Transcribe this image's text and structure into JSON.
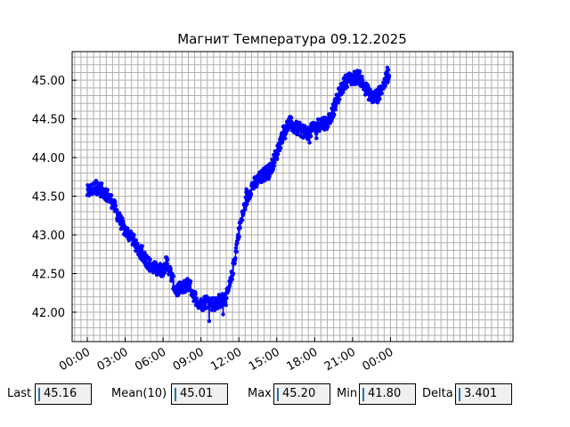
{
  "chart_data": {
    "type": "line",
    "title": "Магнит Температура 09.12.2025",
    "xlabel": "",
    "ylabel": "",
    "x_unit": "hours",
    "xlim": [
      -1.2,
      33.7
    ],
    "ylim": [
      41.62,
      45.37
    ],
    "x_ticks": [
      {
        "value": 0,
        "label": "00:00"
      },
      {
        "value": 3,
        "label": "03:00"
      },
      {
        "value": 6,
        "label": "06:00"
      },
      {
        "value": 9,
        "label": "09:00"
      },
      {
        "value": 12,
        "label": "12:00"
      },
      {
        "value": 15,
        "label": "15:00"
      },
      {
        "value": 18,
        "label": "18:00"
      },
      {
        "value": 21,
        "label": "21:00"
      },
      {
        "value": 24,
        "label": "00:00"
      }
    ],
    "y_ticks": [
      {
        "value": 42.0,
        "label": "42.00"
      },
      {
        "value": 42.5,
        "label": "42.50"
      },
      {
        "value": 43.0,
        "label": "43.00"
      },
      {
        "value": 43.5,
        "label": "43.50"
      },
      {
        "value": 44.0,
        "label": "44.00"
      },
      {
        "value": 44.5,
        "label": "44.50"
      },
      {
        "value": 45.0,
        "label": "45.00"
      }
    ],
    "grid": true,
    "minor_grid_step_y": 0.1,
    "color": "#0000ff",
    "series": [
      {
        "x_start": 0.0,
        "x_end": 23.9,
        "anchors": [
          [
            0.0,
            43.55
          ],
          [
            0.7,
            43.62
          ],
          [
            1.4,
            43.55
          ],
          [
            2.0,
            43.42
          ],
          [
            2.5,
            43.22
          ],
          [
            3.0,
            43.05
          ],
          [
            3.5,
            42.98
          ],
          [
            4.0,
            42.82
          ],
          [
            4.5,
            42.72
          ],
          [
            5.0,
            42.6
          ],
          [
            5.5,
            42.55
          ],
          [
            6.0,
            42.55
          ],
          [
            6.3,
            42.65
          ],
          [
            6.6,
            42.5
          ],
          [
            7.0,
            42.28
          ],
          [
            7.5,
            42.3
          ],
          [
            8.0,
            42.38
          ],
          [
            8.5,
            42.2
          ],
          [
            9.0,
            42.1
          ],
          [
            9.5,
            42.15
          ],
          [
            10.0,
            42.1
          ],
          [
            10.5,
            42.15
          ],
          [
            11.0,
            42.18
          ],
          [
            11.3,
            42.35
          ],
          [
            11.6,
            42.62
          ],
          [
            12.0,
            43.05
          ],
          [
            12.5,
            43.4
          ],
          [
            13.0,
            43.62
          ],
          [
            13.5,
            43.7
          ],
          [
            14.0,
            43.78
          ],
          [
            14.5,
            43.85
          ],
          [
            15.0,
            44.05
          ],
          [
            15.5,
            44.32
          ],
          [
            16.0,
            44.45
          ],
          [
            16.5,
            44.38
          ],
          [
            17.0,
            44.35
          ],
          [
            17.5,
            44.32
          ],
          [
            18.0,
            44.38
          ],
          [
            18.5,
            44.45
          ],
          [
            19.0,
            44.45
          ],
          [
            19.5,
            44.62
          ],
          [
            20.0,
            44.85
          ],
          [
            20.5,
            45.0
          ],
          [
            21.0,
            45.02
          ],
          [
            21.5,
            45.05
          ],
          [
            22.0,
            44.9
          ],
          [
            22.5,
            44.78
          ],
          [
            23.0,
            44.8
          ],
          [
            23.5,
            44.95
          ],
          [
            23.9,
            45.1
          ]
        ],
        "noise": 0.09,
        "points_per_hour": 40
      }
    ]
  },
  "stats": [
    {
      "label": "Last",
      "value": "45.16"
    },
    {
      "label": "Mean(10)",
      "value": "45.01"
    },
    {
      "label": "Max",
      "value": "45.20"
    },
    {
      "label": "Min",
      "value": "41.80"
    },
    {
      "label": "Delta",
      "value": "3.401"
    }
  ]
}
